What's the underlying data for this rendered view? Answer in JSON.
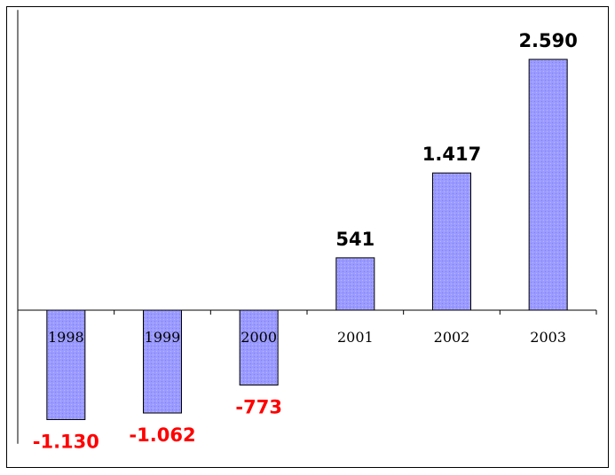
{
  "chart_data": {
    "type": "bar",
    "categories": [
      "1998",
      "1999",
      "2000",
      "2001",
      "2002",
      "2003"
    ],
    "values": [
      -1130,
      -1062,
      -773,
      541,
      1417,
      2590
    ],
    "data_labels": [
      "-1.130",
      "-1.062",
      "-773",
      "541",
      "1.417",
      "2.590"
    ],
    "title": "",
    "xlabel": "",
    "ylabel": "",
    "ylim": [
      -1380,
      3100
    ],
    "grid": false,
    "legend": "none",
    "colors": {
      "bar_fill": "#9999ff",
      "bar_stroke": "#000000",
      "positive_label": "#000000",
      "negative_label": "#ff0000"
    }
  }
}
